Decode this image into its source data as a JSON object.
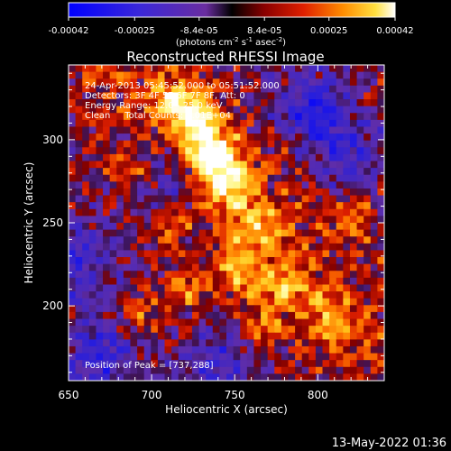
{
  "chart_data": {
    "type": "heatmap",
    "title": "Reconstructed RHESSI Image",
    "xlabel": "Heliocentric X (arcsec)",
    "ylabel": "Heliocentric Y (arcsec)",
    "xlim": [
      650,
      840
    ],
    "ylim": [
      155,
      345
    ],
    "xticks": [
      650,
      700,
      750,
      800
    ],
    "yticks": [
      200,
      250,
      300
    ],
    "colorbar": {
      "ticks": [
        "-0.00042",
        "-0.00025",
        "-8.4e-05",
        "8.4e-05",
        "0.00025",
        "0.00042"
      ],
      "values": [
        -0.00042,
        -0.00025,
        -8.4e-05,
        8.4e-05,
        0.00025,
        0.00042
      ],
      "range": [
        -0.00042,
        0.00042
      ],
      "units_main": "(photons cm",
      "units_exp1": "-2",
      "units_mid": " s",
      "units_exp2": "-1",
      "units_end": " asec",
      "units_exp3": "-2",
      "units_close": ")"
    },
    "annotations": [
      "24-Apr-2013 05:45:52.000 to 05:51:52.000",
      "Detectors: 3F 4F 5F 6F 7F 8F, Att: 0",
      "Energy Range: 12.0 - 25.0 keV",
      "Clean     Total Counts: 1.01E+04"
    ],
    "peak_label": "Position of Peak = [737,288]",
    "peak": [
      737,
      288
    ],
    "sources": [
      {
        "x": 737,
        "y": 290,
        "amp": 1.05
      },
      {
        "x": 728,
        "y": 312,
        "amp": 0.8
      },
      {
        "x": 748,
        "y": 272,
        "amp": 0.65
      },
      {
        "x": 714,
        "y": 324,
        "amp": 0.55
      },
      {
        "x": 690,
        "y": 278,
        "amp": 0.45
      },
      {
        "x": 765,
        "y": 248,
        "amp": 0.5
      },
      {
        "x": 752,
        "y": 222,
        "amp": 0.55
      },
      {
        "x": 782,
        "y": 212,
        "amp": 0.5
      },
      {
        "x": 722,
        "y": 210,
        "amp": 0.45
      },
      {
        "x": 808,
        "y": 190,
        "amp": 0.45
      },
      {
        "x": 768,
        "y": 188,
        "amp": 0.4
      },
      {
        "x": 690,
        "y": 198,
        "amp": 0.4
      },
      {
        "x": 668,
        "y": 224,
        "amp": 0.35
      },
      {
        "x": 818,
        "y": 252,
        "amp": 0.3
      },
      {
        "x": 710,
        "y": 248,
        "amp": 0.35
      }
    ],
    "negative_regions": [
      {
        "x": 662,
        "y": 226,
        "amp": 0.6
      },
      {
        "x": 703,
        "y": 274,
        "amp": 0.5
      },
      {
        "x": 795,
        "y": 318,
        "amp": 0.6
      },
      {
        "x": 818,
        "y": 292,
        "amp": 0.5
      },
      {
        "x": 668,
        "y": 172,
        "amp": 0.5
      },
      {
        "x": 740,
        "y": 164,
        "amp": 0.4
      }
    ]
  },
  "footer": {
    "timestamp": "13-May-2022 01:36"
  }
}
